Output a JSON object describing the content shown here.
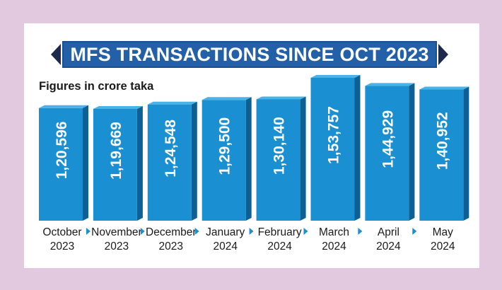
{
  "title": "MFS TRANSACTIONS SINCE OCT 2023",
  "subtitle": "Figures in crore taka",
  "colors": {
    "background": "#e3c9df",
    "card": "#ffffff",
    "title_bar": "#2460a7",
    "bar_front": "#1a8fd1",
    "bar_side": "#0d5f94",
    "bar_top": "#4ab3e6",
    "arrow": "#1d2a4e"
  },
  "chart_data": {
    "type": "bar",
    "title": "MFS TRANSACTIONS SINCE OCT 2023",
    "subtitle": "Figures in crore taka",
    "categories": [
      [
        "October",
        "2023"
      ],
      [
        "November",
        "2023"
      ],
      [
        "December",
        "2023"
      ],
      [
        "January",
        "2024"
      ],
      [
        "February",
        "2024"
      ],
      [
        "March",
        "2024"
      ],
      [
        "April",
        "2024"
      ],
      [
        "May",
        "2024"
      ]
    ],
    "values": [
      120596,
      119669,
      124548,
      129500,
      130140,
      153757,
      144929,
      140952
    ],
    "data_labels": [
      "1,20,596",
      "1,19,669",
      "1,24,548",
      "1,29,500",
      "1,30,140",
      "1,53,757",
      "1,44,929",
      "1,40,952"
    ],
    "xlabel": "",
    "ylabel": "",
    "grid": false,
    "legend": "none"
  }
}
